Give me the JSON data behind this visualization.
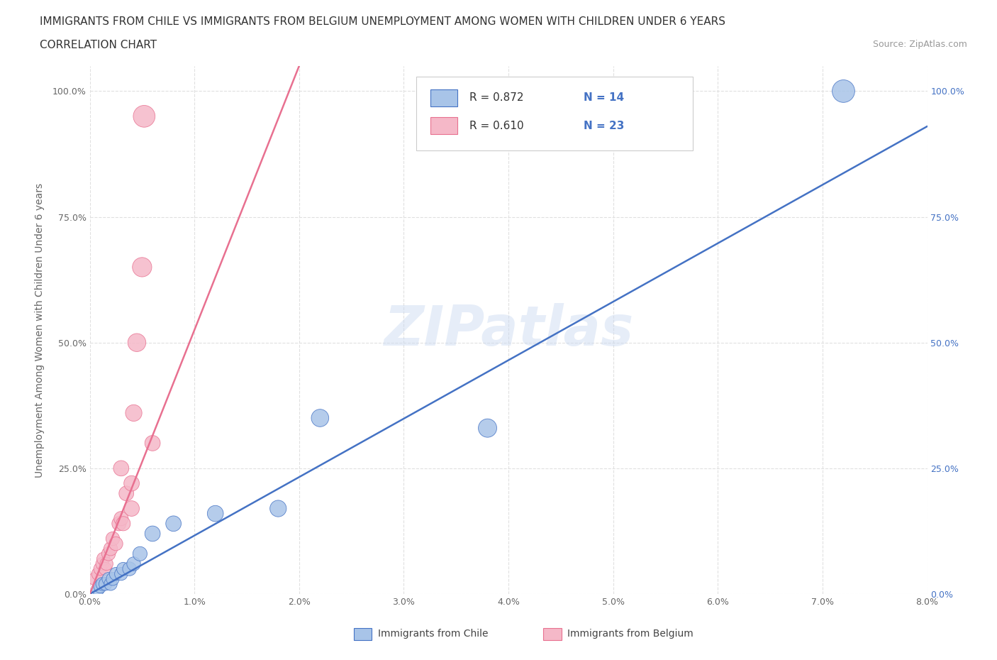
{
  "title_line1": "IMMIGRANTS FROM CHILE VS IMMIGRANTS FROM BELGIUM UNEMPLOYMENT AMONG WOMEN WITH CHILDREN UNDER 6 YEARS",
  "title_line2": "CORRELATION CHART",
  "source_text": "Source: ZipAtlas.com",
  "ylabel": "Unemployment Among Women with Children Under 6 years",
  "watermark": "ZIPatlas",
  "xmin": 0.0,
  "xmax": 0.08,
  "ymin": 0.0,
  "ymax": 1.05,
  "xticks": [
    0.0,
    0.01,
    0.02,
    0.03,
    0.04,
    0.05,
    0.06,
    0.07,
    0.08
  ],
  "xtick_labels": [
    "0.0%",
    "1.0%",
    "2.0%",
    "3.0%",
    "4.0%",
    "5.0%",
    "6.0%",
    "7.0%",
    "8.0%"
  ],
  "yticks": [
    0.0,
    0.25,
    0.5,
    0.75,
    1.0
  ],
  "ytick_labels_left": [
    "0.0%",
    "25.0%",
    "50.0%",
    "75.0%",
    "100.0%"
  ],
  "ytick_labels_right": [
    "0.0%",
    "25.0%",
    "50.0%",
    "75.0%",
    "100.0%"
  ],
  "chile_color": "#a8c4e8",
  "belgium_color": "#f5b8c8",
  "chile_line_color": "#4472c4",
  "belgium_line_color": "#e87090",
  "legend_r_color": "#333333",
  "legend_n_color": "#4472c4",
  "r_axis_color": "#4472c4",
  "chile_label": "Immigrants from Chile",
  "belgium_label": "Immigrants from Belgium",
  "chile_scatter_x": [
    0.0008,
    0.001,
    0.0012,
    0.0015,
    0.0018,
    0.002,
    0.0022,
    0.0025,
    0.003,
    0.0032,
    0.0038,
    0.0042,
    0.0048,
    0.006,
    0.008,
    0.012,
    0.018,
    0.022,
    0.038,
    0.072
  ],
  "chile_scatter_y": [
    0.01,
    0.015,
    0.02,
    0.02,
    0.03,
    0.02,
    0.03,
    0.04,
    0.04,
    0.05,
    0.05,
    0.06,
    0.08,
    0.12,
    0.14,
    0.16,
    0.17,
    0.35,
    0.33,
    1.0
  ],
  "chile_scatter_size": [
    25,
    25,
    25,
    25,
    25,
    25,
    25,
    25,
    25,
    25,
    28,
    28,
    30,
    35,
    35,
    38,
    40,
    45,
    50,
    75
  ],
  "belgium_scatter_x": [
    0.0005,
    0.0008,
    0.001,
    0.0012,
    0.0013,
    0.0015,
    0.0016,
    0.0018,
    0.002,
    0.0022,
    0.0025,
    0.0028,
    0.003,
    0.003,
    0.0032,
    0.0035,
    0.004,
    0.004,
    0.0042,
    0.0045,
    0.005,
    0.0052,
    0.006
  ],
  "belgium_scatter_y": [
    0.03,
    0.04,
    0.05,
    0.06,
    0.07,
    0.05,
    0.06,
    0.08,
    0.09,
    0.11,
    0.1,
    0.14,
    0.15,
    0.25,
    0.14,
    0.2,
    0.17,
    0.22,
    0.36,
    0.5,
    0.65,
    0.95,
    0.3
  ],
  "belgium_scatter_size": [
    25,
    25,
    25,
    25,
    25,
    25,
    25,
    28,
    28,
    28,
    28,
    30,
    30,
    35,
    30,
    32,
    35,
    35,
    40,
    48,
    55,
    70,
    35
  ],
  "chile_line_x": [
    0.0,
    0.08
  ],
  "chile_line_y": [
    0.0,
    0.93
  ],
  "belgium_line_x": [
    0.0,
    0.02
  ],
  "belgium_line_y": [
    0.0,
    1.05
  ],
  "belgium_line_style": "solid",
  "grid_color": "#e0e0e0",
  "bg_color": "#ffffff"
}
